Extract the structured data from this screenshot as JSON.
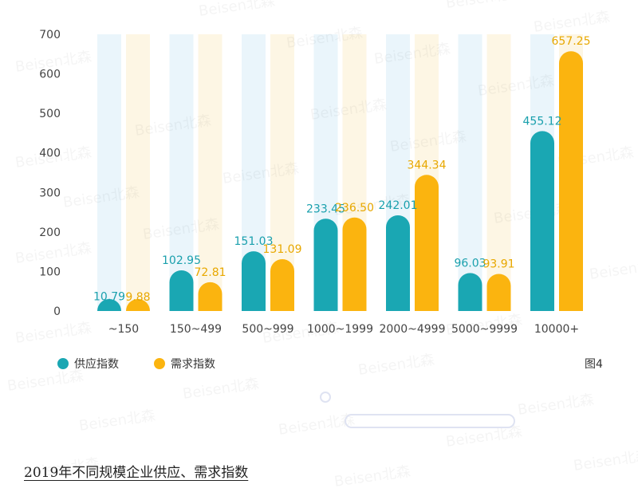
{
  "chart_data": {
    "type": "bar",
    "categories": [
      "~150",
      "150~499",
      "500~999",
      "1000~1999",
      "2000~4999",
      "5000~9999",
      "10000+"
    ],
    "series": [
      {
        "name": "供应指数",
        "values": [
          10.79,
          102.95,
          151.03,
          233.45,
          242.01,
          96.03,
          455.12
        ],
        "labels": [
          "10.79",
          "102.95",
          "151.03",
          "233.45",
          "242.01",
          "96.03",
          "455.12"
        ]
      },
      {
        "name": "需求指数",
        "values": [
          9.88,
          72.81,
          131.09,
          236.5,
          344.34,
          93.91,
          657.25
        ],
        "labels": [
          "9.88",
          "72.81",
          "131.09",
          "236.50",
          "344.34",
          "93.91",
          "657.25"
        ]
      }
    ],
    "y_ticks": [
      "0",
      "100",
      "200",
      "300",
      "400",
      "500",
      "600",
      "700"
    ],
    "ylim": [
      0,
      700
    ],
    "legend_position": "bottom-left",
    "figure_label": "图4"
  },
  "colors": {
    "supply": "#1aa7b3",
    "demand": "#fbb40f",
    "supply_bg": "#eaf5fb",
    "demand_bg": "#fdf6e4",
    "supply_label": "#1aa0ad",
    "demand_label": "#e8a800"
  },
  "watermark": "Beisen北森",
  "caption": "2019年不同规模企业供应、需求指数"
}
